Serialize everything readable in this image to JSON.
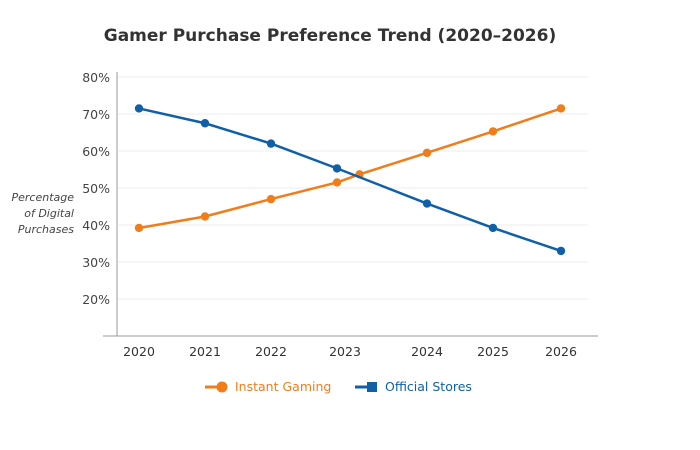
{
  "chart_data": {
    "type": "line",
    "title": "Gamer Purchase Preference Trend (2020–2026)",
    "xlabel": "",
    "ylabel": "Percentage of Digital Purchases",
    "categories": [
      "2020",
      "2021",
      "2022",
      "2023",
      "2024",
      "2025",
      "2026"
    ],
    "yticks": [
      "20%",
      "30%",
      "40%",
      "50%",
      "60%",
      "70%",
      "80%"
    ],
    "ylim": [
      10,
      80
    ],
    "grid": true,
    "legend_position": "bottom",
    "series": [
      {
        "name": "Instant Gaming",
        "color": "#f07d1a",
        "marker": "circle",
        "x": [
          2020,
          2021,
          2022,
          2023,
          2023.25,
          2024,
          2025,
          2026
        ],
        "values": [
          39.2,
          42.3,
          47.0,
          51.5,
          53.7,
          59.5,
          65.3,
          71.5
        ]
      },
      {
        "name": "Official Stores",
        "color": "#1060a8",
        "marker": "square",
        "x": [
          2020,
          2021,
          2022,
          2023,
          2024,
          2025,
          2026
        ],
        "values": [
          71.5,
          67.5,
          62.0,
          55.3,
          45.8,
          39.2,
          33.0
        ]
      }
    ]
  }
}
